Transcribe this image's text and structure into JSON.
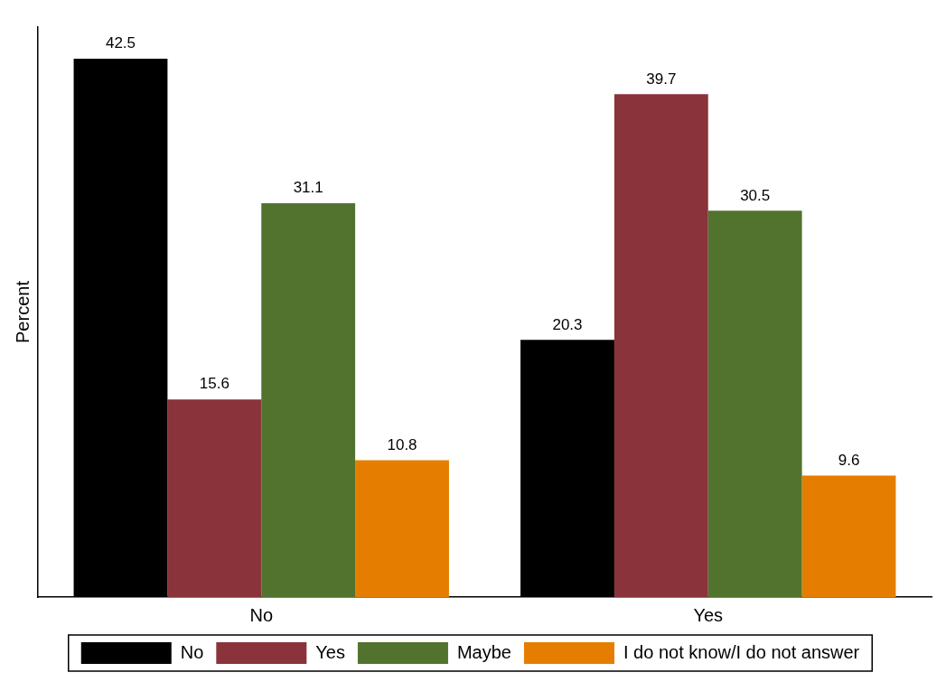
{
  "chart_data": {
    "type": "bar",
    "ylabel": "Percent",
    "categories": [
      "No",
      "Yes"
    ],
    "series": [
      {
        "name": "No",
        "color": "#000000",
        "values": [
          42.5,
          20.3
        ]
      },
      {
        "name": "Yes",
        "color": "#8b333a",
        "values": [
          15.6,
          39.7
        ]
      },
      {
        "name": "Maybe",
        "color": "#52732e",
        "values": [
          31.1,
          30.5
        ]
      },
      {
        "name": "I do not know/I do not answer",
        "color": "#e57e00",
        "values": [
          10.8,
          9.6
        ]
      }
    ],
    "ylim": [
      0,
      45
    ],
    "tick_labels": "x",
    "grid": false,
    "legend": "bottom",
    "data_labels": true
  }
}
